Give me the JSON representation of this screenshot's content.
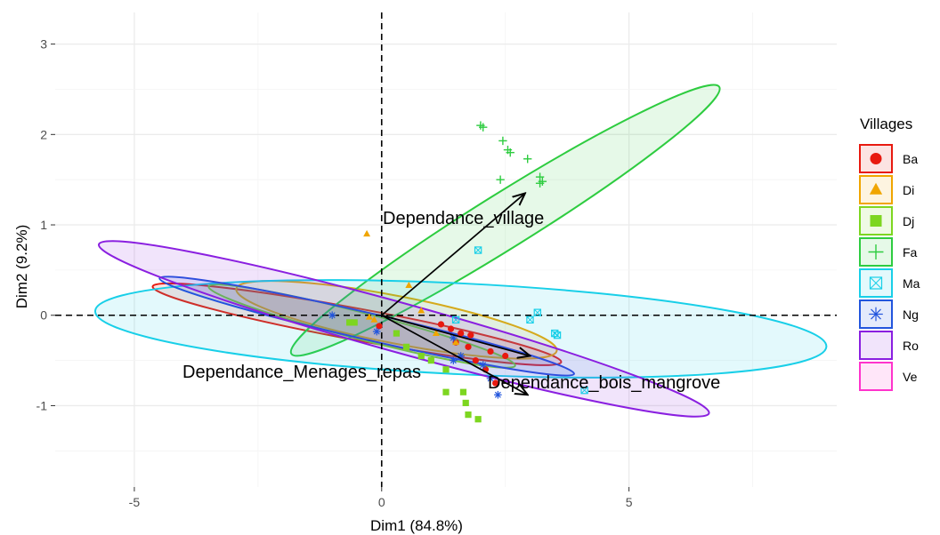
{
  "chart_data": {
    "type": "scatter",
    "xlabel": "Dim1 (84.8%)",
    "ylabel": "Dim2 (9.2%)",
    "xlim": [
      -6.6,
      9.2
    ],
    "ylim": [
      -1.9,
      3.35
    ],
    "x_ticks": [
      -5,
      0,
      5
    ],
    "y_ticks": [
      -1,
      0,
      1,
      2,
      3
    ],
    "x_tick_labels": [
      "-5",
      "0",
      "5"
    ],
    "y_tick_labels": [
      "-1",
      "0",
      "1",
      "2",
      "3"
    ],
    "grid": true,
    "reference_lines": {
      "x": 0,
      "y": 0,
      "style": "dashed"
    },
    "legend": {
      "title": "Villages",
      "position": "right"
    },
    "series": [
      {
        "name": "Ba",
        "color": "#e8190f",
        "shape": "circle",
        "points": [
          [
            -0.05,
            -0.12
          ],
          [
            1.2,
            -0.1
          ],
          [
            1.4,
            -0.15
          ],
          [
            1.6,
            -0.2
          ],
          [
            1.8,
            -0.22
          ],
          [
            1.5,
            -0.3
          ],
          [
            1.75,
            -0.35
          ],
          [
            2.2,
            -0.4
          ],
          [
            2.5,
            -0.45
          ],
          [
            1.9,
            -0.5
          ],
          [
            2.1,
            -0.6
          ],
          [
            2.3,
            -0.75
          ]
        ],
        "ellipse": {
          "cx": -0.5,
          "cy": -0.1,
          "rx": 4.2,
          "ry": 0.32,
          "angle_deg": -10.5
        }
      },
      {
        "name": "Di",
        "color": "#f0a500",
        "shape": "triangle",
        "points": [
          [
            -0.3,
            0.9
          ],
          [
            0.55,
            0.33
          ],
          [
            -0.25,
            -0.02
          ],
          [
            -0.15,
            -0.05
          ],
          [
            0.8,
            0.05
          ],
          [
            1.1,
            -0.2
          ],
          [
            1.5,
            -0.3
          ]
        ],
        "ellipse": {
          "cx": 0.3,
          "cy": -0.05,
          "rx": 3.3,
          "ry": 0.48,
          "angle_deg": -11
        }
      },
      {
        "name": "Dj",
        "color": "#7dd620",
        "shape": "square",
        "points": [
          [
            -0.65,
            -0.08
          ],
          [
            -0.55,
            -0.08
          ],
          [
            0.3,
            -0.2
          ],
          [
            0.5,
            -0.35
          ],
          [
            0.8,
            -0.45
          ],
          [
            1.3,
            -0.6
          ],
          [
            1.3,
            -0.85
          ],
          [
            1.65,
            -0.85
          ],
          [
            1.7,
            -0.97
          ],
          [
            1.75,
            -1.1
          ],
          [
            1.95,
            -1.15
          ],
          [
            1.0,
            -0.5
          ]
        ],
        "ellipse": {
          "cx": -0.4,
          "cy": -0.12,
          "rx": 3.2,
          "ry": 0.27,
          "angle_deg": -14.5
        }
      },
      {
        "name": "Fa",
        "color": "#2ecc40",
        "shape": "plus",
        "points": [
          [
            2.0,
            2.1
          ],
          [
            2.05,
            2.08
          ],
          [
            2.45,
            1.93
          ],
          [
            2.55,
            1.83
          ],
          [
            2.6,
            1.8
          ],
          [
            2.95,
            1.73
          ],
          [
            3.2,
            1.53
          ],
          [
            3.25,
            1.48
          ],
          [
            3.2,
            1.46
          ],
          [
            2.4,
            1.5
          ]
        ],
        "ellipse": {
          "cx": 2.5,
          "cy": 1.05,
          "rx": 5.1,
          "ry": 0.55,
          "angle_deg": 32
        }
      },
      {
        "name": "Ma",
        "color": "#18cfe8",
        "shape": "square-x",
        "points": [
          [
            1.95,
            0.72
          ],
          [
            1.5,
            -0.05
          ],
          [
            3.0,
            -0.05
          ],
          [
            3.15,
            0.03
          ],
          [
            3.5,
            -0.2
          ],
          [
            3.55,
            -0.22
          ],
          [
            4.1,
            -0.83
          ]
        ],
        "ellipse": {
          "cx": 1.6,
          "cy": -0.15,
          "rx": 7.4,
          "ry": 0.92,
          "angle_deg": -2.8
        }
      },
      {
        "name": "Ng",
        "color": "#2255dd",
        "shape": "star",
        "points": [
          [
            -1.0,
            0.0
          ],
          [
            -0.1,
            -0.18
          ],
          [
            1.45,
            -0.25
          ],
          [
            1.45,
            -0.5
          ],
          [
            1.6,
            -0.45
          ],
          [
            2.2,
            -0.7
          ],
          [
            2.35,
            -0.88
          ],
          [
            2.05,
            -0.55
          ]
        ],
        "ellipse": {
          "cx": -0.3,
          "cy": -0.12,
          "rx": 4.3,
          "ry": 0.27,
          "angle_deg": -13
        }
      },
      {
        "name": "Ro",
        "color": "#8a1fe0",
        "shape": "none",
        "points": [],
        "ellipse": {
          "cx": 0.45,
          "cy": -0.15,
          "rx": 6.4,
          "ry": 0.5,
          "angle_deg": -15.5
        }
      },
      {
        "name": "Ve",
        "color": "#ff33cc",
        "shape": "none",
        "points": [],
        "ellipse": null
      }
    ],
    "arrows": [
      {
        "label": "Dependance_village",
        "x": 2.9,
        "y": 1.35
      },
      {
        "label": "Dependance_Menages_repas",
        "x": 3.0,
        "y": -0.45
      },
      {
        "label": "Dependance_bois_mangrove",
        "x": 2.95,
        "y": -0.88
      }
    ]
  }
}
